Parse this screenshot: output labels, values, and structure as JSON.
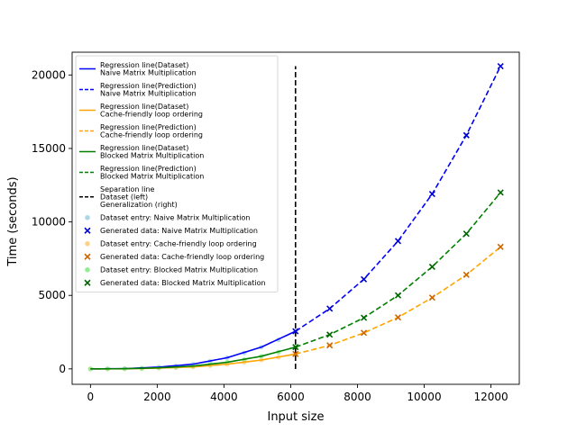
{
  "chart_data": {
    "type": "line",
    "xlabel": "Input size",
    "ylabel": "Time (seconds)",
    "xlim": [
      -550,
      12850
    ],
    "ylim": [
      -1050,
      21550
    ],
    "xticks": [
      0,
      2000,
      4000,
      6000,
      8000,
      10000,
      12000
    ],
    "yticks": [
      0,
      5000,
      10000,
      15000,
      20000
    ],
    "separation_x": 6144,
    "separation_ylim": [
      -10,
      20600
    ],
    "dataset_x_max": 6144,
    "regression_dataset": [
      {
        "name": "Naive Matrix Multiplication",
        "color": "#0000ff",
        "x": [
          0,
          1024,
          2048,
          3072,
          4096,
          5120,
          6144
        ],
        "y": [
          0,
          15,
          120,
          320,
          760,
          1480,
          2560
        ]
      },
      {
        "name": "Cache-friendly loop ordering",
        "color": "#ffa500",
        "x": [
          0,
          1024,
          2048,
          3072,
          4096,
          5120,
          6144
        ],
        "y": [
          0,
          6,
          50,
          135,
          320,
          600,
          1010
        ]
      },
      {
        "name": "Blocked Matrix Multiplication",
        "color": "#008000",
        "x": [
          0,
          1024,
          2048,
          3072,
          4096,
          5120,
          6144
        ],
        "y": [
          0,
          9,
          70,
          190,
          450,
          860,
          1480
        ]
      }
    ],
    "regression_prediction": [
      {
        "name": "Naive Matrix Multiplication",
        "color": "#0000ff",
        "x": [
          6144,
          7168,
          8192,
          9216,
          10240,
          11264,
          12288
        ],
        "y": [
          2560,
          4100,
          6100,
          8700,
          11900,
          15900,
          20600
        ]
      },
      {
        "name": "Cache-friendly loop ordering",
        "color": "#ffa500",
        "x": [
          6144,
          7168,
          8192,
          9216,
          10240,
          11264,
          12288
        ],
        "y": [
          1010,
          1600,
          2450,
          3500,
          4850,
          6400,
          8300
        ]
      },
      {
        "name": "Blocked Matrix Multiplication",
        "color": "#008000",
        "x": [
          6144,
          7168,
          8192,
          9216,
          10240,
          11264,
          12288
        ],
        "y": [
          1480,
          2330,
          3480,
          5000,
          6950,
          9200,
          12000
        ]
      }
    ],
    "dataset_entries": [
      {
        "name": "Naive Matrix Multiplication",
        "color": "#add8e6",
        "x": [
          0,
          512,
          1024,
          1536,
          2048,
          2560,
          3072,
          3584,
          4096,
          4608,
          5120,
          5632,
          6144
        ],
        "y": [
          0,
          2,
          15,
          50,
          120,
          190,
          320,
          520,
          760,
          1080,
          1480,
          1970,
          2560
        ]
      },
      {
        "name": "Cache-friendly loop ordering",
        "color": "#ffd28c",
        "x": [
          0,
          512,
          1024,
          1536,
          2048,
          2560,
          3072,
          3584,
          4096,
          4608,
          5120,
          5632,
          6144
        ],
        "y": [
          0,
          1,
          6,
          20,
          50,
          85,
          135,
          215,
          320,
          440,
          600,
          790,
          1010
        ]
      },
      {
        "name": "Blocked Matrix Multiplication",
        "color": "#90ee90",
        "x": [
          0,
          512,
          1024,
          1536,
          2048,
          2560,
          3072,
          3584,
          4096,
          4608,
          5120,
          5632,
          6144
        ],
        "y": [
          0,
          1,
          9,
          30,
          70,
          120,
          190,
          300,
          450,
          630,
          860,
          1140,
          1480
        ]
      }
    ],
    "generated_data": [
      {
        "name": "Naive Matrix Multiplication",
        "color": "#0000cd",
        "x": [
          6144,
          7168,
          8192,
          9216,
          10240,
          11264,
          12288
        ],
        "y": [
          2560,
          4100,
          6100,
          8700,
          11900,
          15900,
          20600
        ]
      },
      {
        "name": "Cache-friendly loop ordering",
        "color": "#cc6600",
        "x": [
          6144,
          7168,
          8192,
          9216,
          10240,
          11264,
          12288
        ],
        "y": [
          1010,
          1600,
          2450,
          3500,
          4850,
          6400,
          8300
        ]
      },
      {
        "name": "Blocked Matrix Multiplication",
        "color": "#006400",
        "x": [
          6144,
          7168,
          8192,
          9216,
          10240,
          11264,
          12288
        ],
        "y": [
          1480,
          2330,
          3480,
          5000,
          6950,
          9200,
          12000
        ]
      }
    ],
    "legend": {
      "placement": "upper left",
      "entries": [
        {
          "kind": "line",
          "style": "solid",
          "color": "#0000ff",
          "lines": [
            "Regression line(Dataset)",
            "Naive Matrix Multiplication"
          ]
        },
        {
          "kind": "line",
          "style": "dashed",
          "color": "#0000ff",
          "lines": [
            "Regression line(Prediction)",
            "Naive Matrix Multiplication"
          ]
        },
        {
          "kind": "line",
          "style": "solid",
          "color": "#ffa500",
          "lines": [
            "Regression line(Dataset)",
            "Cache-friendly loop ordering"
          ]
        },
        {
          "kind": "line",
          "style": "dashed",
          "color": "#ffa500",
          "lines": [
            "Regression line(Prediction)",
            "Cache-friendly loop ordering"
          ]
        },
        {
          "kind": "line",
          "style": "solid",
          "color": "#008000",
          "lines": [
            "Regression line(Dataset)",
            "Blocked Matrix Multiplication"
          ]
        },
        {
          "kind": "line",
          "style": "dashed",
          "color": "#008000",
          "lines": [
            "Regression line(Prediction)",
            "Blocked Matrix Multiplication"
          ]
        },
        {
          "kind": "line",
          "style": "dashed",
          "color": "#000000",
          "lines": [
            "Separation line",
            "Dataset (left)",
            "Generalization (right)"
          ]
        },
        {
          "kind": "dot",
          "color": "#add8e6",
          "lines": [
            "Dataset entry: Naive Matrix Multiplication"
          ]
        },
        {
          "kind": "x",
          "color": "#0000cd",
          "lines": [
            "Generated data: Naive Matrix Multiplication"
          ]
        },
        {
          "kind": "dot",
          "color": "#ffd28c",
          "lines": [
            "Dataset entry: Cache-friendly loop ordering"
          ]
        },
        {
          "kind": "x",
          "color": "#cc6600",
          "lines": [
            "Generated data: Cache-friendly loop ordering"
          ]
        },
        {
          "kind": "dot",
          "color": "#90ee90",
          "lines": [
            "Dataset entry: Blocked Matrix Multiplication"
          ]
        },
        {
          "kind": "x",
          "color": "#006400",
          "lines": [
            "Generated data: Blocked Matrix Multiplication"
          ]
        }
      ]
    }
  }
}
